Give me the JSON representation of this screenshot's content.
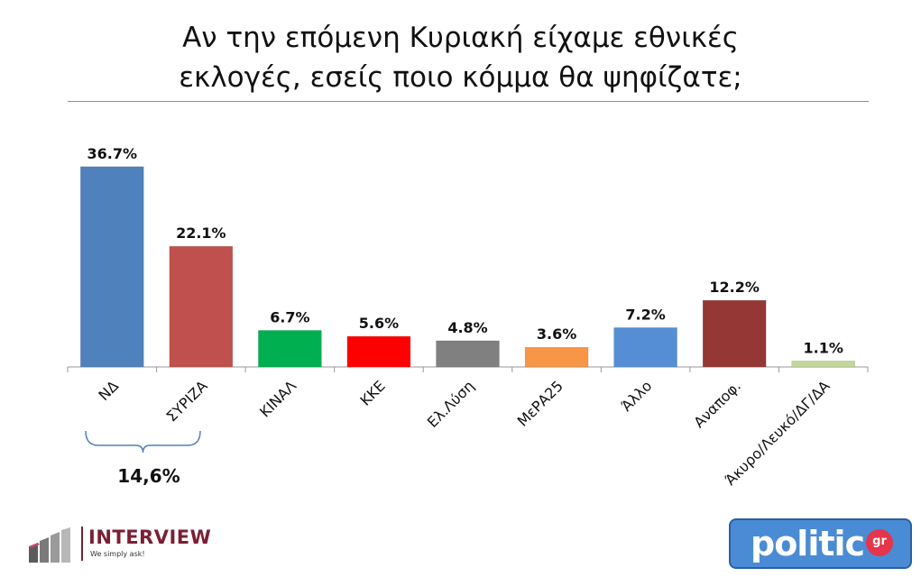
{
  "title_line1": "Αν την επόμενη Κυριακή είχαμε εθνικές",
  "title_line2": "εκλογές, εσείς ποιο κόμμα θα ψηφίζατε;",
  "gap_label": "14,6%",
  "logo_interview": {
    "name": "INTERVIEW",
    "tagline": "We simply ask!"
  },
  "logo_politic": {
    "name": "politic",
    "suffix": "gr"
  },
  "chart_data": {
    "type": "bar",
    "title": "Αν την επόμενη Κυριακή είχαμε εθνικές εκλογές, εσείς ποιο κόμμα θα ψηφίζατε;",
    "categories": [
      "ΝΔ",
      "ΣΥΡΙΖΑ",
      "ΚΙΝΑΛ",
      "ΚΚΕ",
      "Ελ.Λύση",
      "ΜεΡΑ25",
      "Άλλο",
      "Αναποφ.",
      "Άκυρο/Λευκό/ΔΓ/ΔΑ"
    ],
    "values": [
      36.7,
      22.1,
      6.7,
      5.6,
      4.8,
      3.6,
      7.2,
      12.2,
      1.1
    ],
    "data_labels": [
      "36.7%",
      "22.1%",
      "6.7%",
      "5.6%",
      "4.8%",
      "3.6%",
      "7.2%",
      "12.2%",
      "1.1%"
    ],
    "colors": [
      "#4f81bd",
      "#c0504d",
      "#00b050",
      "#ff0000",
      "#808080",
      "#f79646",
      "#558ed5",
      "#953735",
      "#c3d69b"
    ],
    "ylim": [
      0,
      37.5
    ],
    "xlabel": "",
    "ylabel": "",
    "grid": false,
    "legend": "none"
  }
}
